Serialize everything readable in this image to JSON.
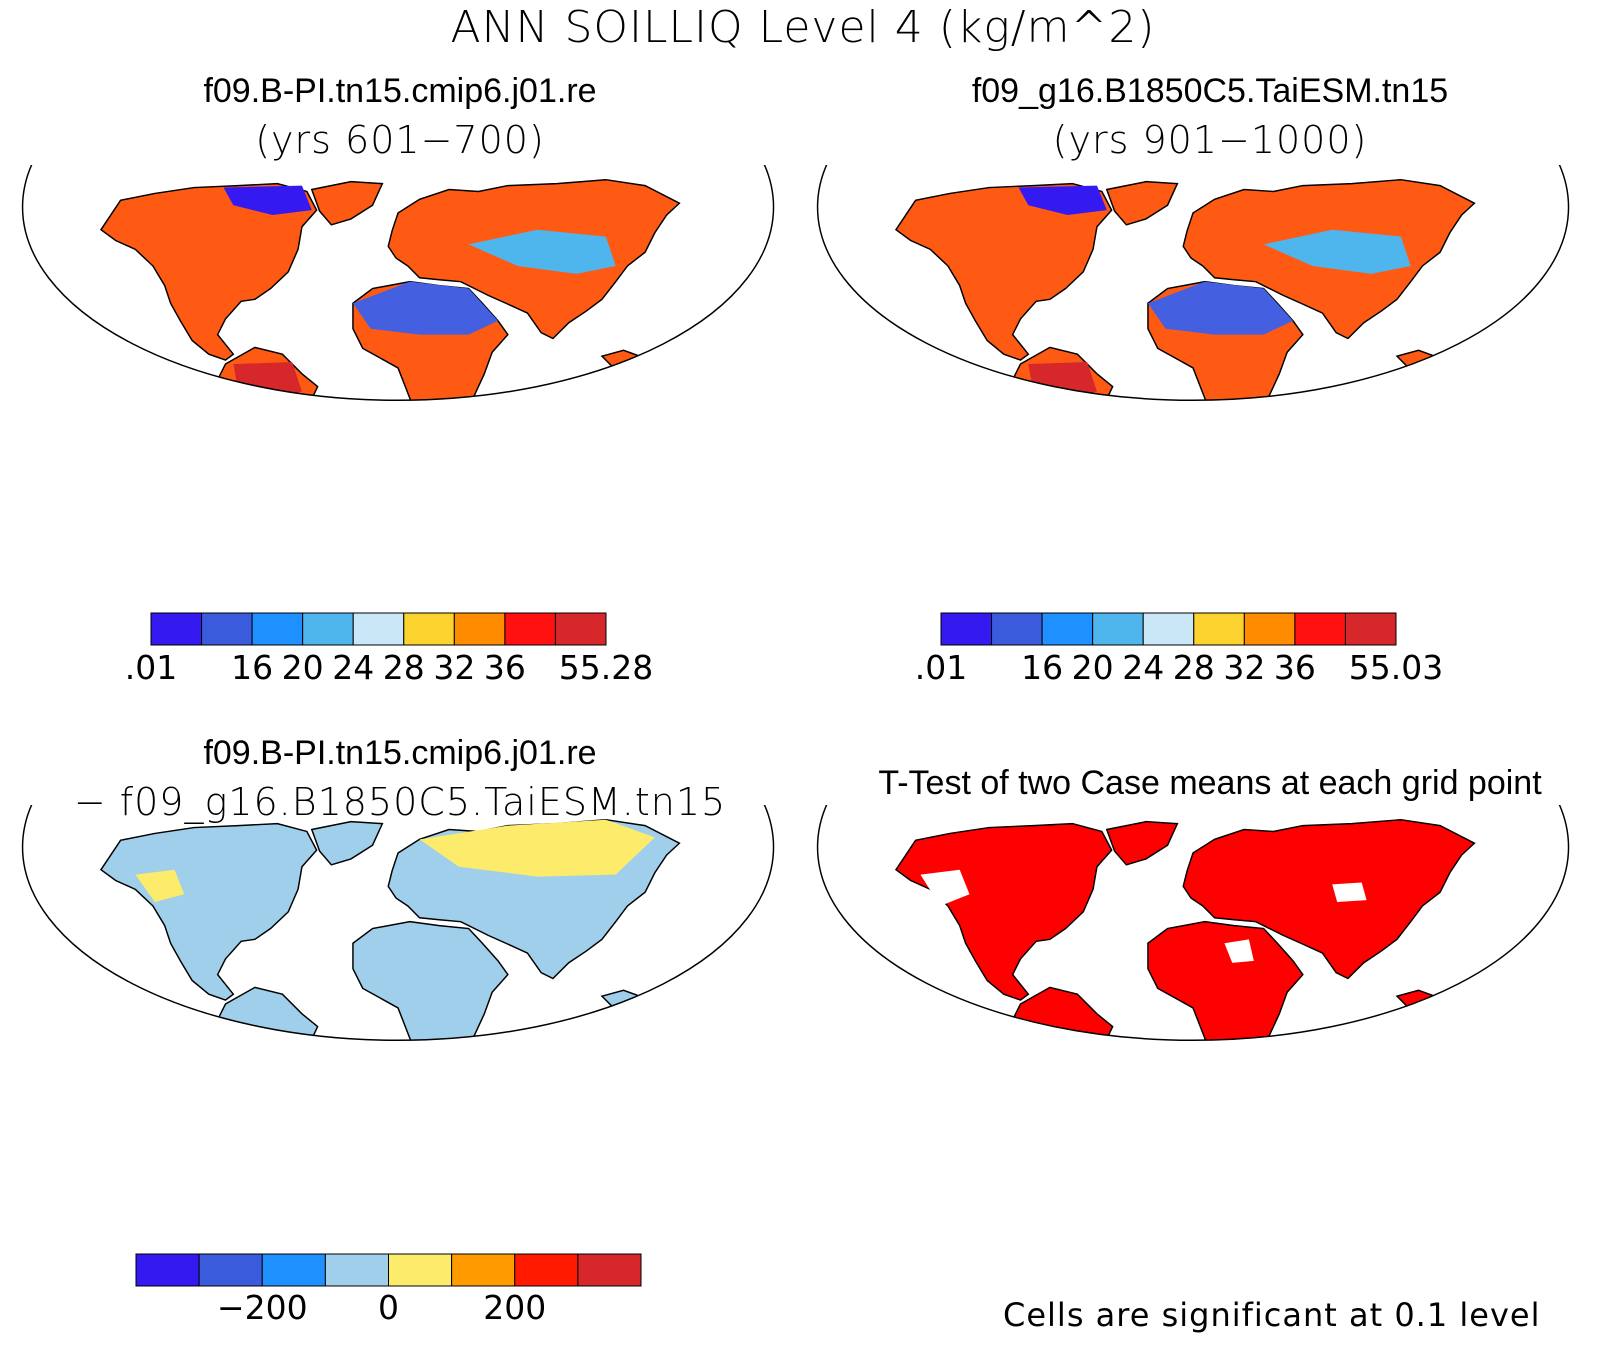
{
  "title": "ANN SOILLIQ Level 4 (kg/m^2)",
  "panels": [
    {
      "id": "case1",
      "title": "f09.B-PI.tn15.cmip6.j01.re",
      "subtitle": "(yrs 601−700)"
    },
    {
      "id": "case2",
      "title": "f09_g16.B1850C5.TaiESM.tn15",
      "subtitle": "(yrs 901−1000)"
    },
    {
      "id": "diff",
      "title": "f09.B-PI.tn15.cmip6.j01.re",
      "subtitle": "− f09_g16.B1850C5.TaiESM.tn15"
    },
    {
      "id": "ttest",
      "title": "T-Test of two Case means at each grid point",
      "subtitle": ""
    }
  ],
  "colorbars": {
    "case1": {
      "colors": [
        "#3419f0",
        "#3a5bdc",
        "#1e90ff",
        "#4fb5ed",
        "#c9e7f7",
        "#fcd22f",
        "#ff8c00",
        "#ff1010",
        "#d6282a"
      ],
      "labels": [
        ".01",
        "16",
        "20",
        "24",
        "28",
        "32",
        "36",
        "55.28"
      ],
      "label_positions": [
        0,
        2,
        3,
        4,
        5,
        6,
        7,
        9
      ]
    },
    "case2": {
      "colors": [
        "#3419f0",
        "#3a5bdc",
        "#1e90ff",
        "#4fb5ed",
        "#c9e7f7",
        "#fcd22f",
        "#ff8c00",
        "#ff1010",
        "#d6282a"
      ],
      "labels": [
        ".01",
        "16",
        "20",
        "24",
        "28",
        "32",
        "36",
        "55.03"
      ],
      "label_positions": [
        0,
        2,
        3,
        4,
        5,
        6,
        7,
        9
      ]
    },
    "diff": {
      "colors": [
        "#3419f0",
        "#3a5bdc",
        "#1e90ff",
        "#9fcfea",
        "#fdeb6b",
        "#ff9a00",
        "#ff1a00",
        "#d6282a"
      ],
      "labels": [
        "−200",
        "0",
        "200"
      ],
      "label_positions": [
        2,
        4,
        6
      ]
    }
  },
  "ttest_note": "Cells are significant at 0.1 level"
}
